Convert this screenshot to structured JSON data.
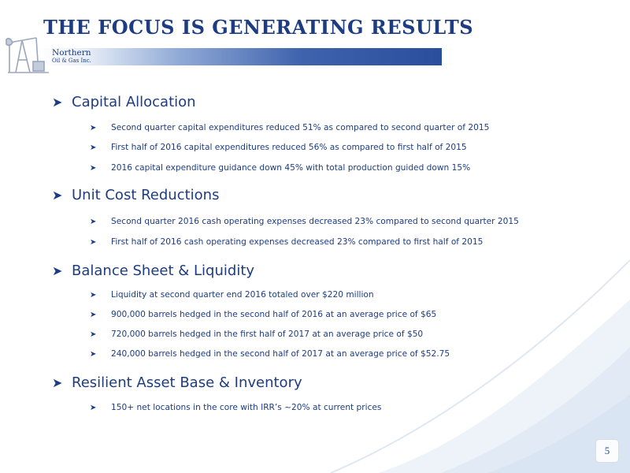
{
  "title": "THE FOCUS IS GENERATING RESULTS",
  "logo": {
    "line1": "Northern",
    "line2": "Oil & Gas Inc."
  },
  "colors": {
    "text": "#1d3c82",
    "banner_dark": "#2a4e9c",
    "wave_light": "#e4ecf7"
  },
  "bullet_icon": "arrow-bullet-icon",
  "sections": [
    {
      "heading": "Capital Allocation",
      "items": [
        "Second quarter capital expenditures reduced 51% as compared to second quarter of 2015",
        "First half of 2016 capital expenditures reduced 56% as compared to first half of 2015",
        "2016 capital expenditure guidance down 45% with total production guided down 15%"
      ]
    },
    {
      "heading": "Unit Cost Reductions",
      "items": [
        "Second quarter 2016 cash operating expenses decreased 23% compared to second quarter 2015",
        "First half of 2016 cash operating expenses decreased 23% compared to first half of 2015"
      ]
    },
    {
      "heading": "Balance Sheet & Liquidity",
      "items": [
        "Liquidity at second quarter end 2016 totaled over $220 million",
        "900,000 barrels hedged in the second half of 2016 at an average price of $65",
        "720,000 barrels hedged in the first half of 2017 at an average price of $50",
        "240,000 barrels hedged in the second half of 2017 at an average price of $52.75"
      ]
    },
    {
      "heading": "Resilient Asset Base & Inventory",
      "items": [
        "150+ net locations in the core with IRR’s ~20% at current prices"
      ]
    }
  ],
  "page_number": "5"
}
